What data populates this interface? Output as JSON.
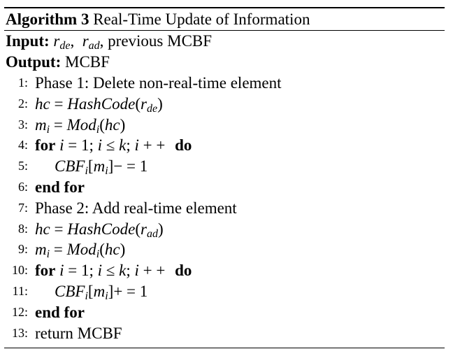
{
  "algorithm": {
    "caption_label": "Algorithm 3",
    "caption_title": "Real-Time Update of Information",
    "input_label": "Input:",
    "input_vars": [
      "r",
      "de",
      "r",
      "ad"
    ],
    "input_rest": "previous MCBF",
    "output_label": "Output:",
    "output_value": "MCBF",
    "phase1": "Phase 1: Delete non-real-time element",
    "phase2": "Phase 2: Add real-time element",
    "hash_fn": "HashCode",
    "mod_fn": "Mod",
    "cbf": "CBF",
    "hc": "hc",
    "m": "m",
    "i": "i",
    "k": "k",
    "for_kw": "for",
    "do_kw": "do",
    "end_for": "end for",
    "dec_op": "− = 1",
    "inc_op": "+ = 1",
    "return_text": "return MCBF",
    "line_numbers": [
      "1:",
      "2:",
      "3:",
      "4:",
      "5:",
      "6:",
      "7:",
      "8:",
      "9:",
      "10:",
      "11:",
      "12:",
      "13:"
    ]
  }
}
